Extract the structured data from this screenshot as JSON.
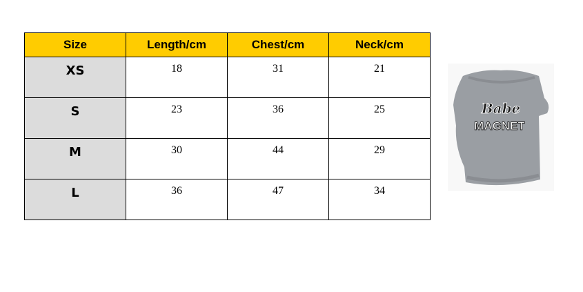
{
  "table": {
    "headers": [
      "Size",
      "Length/cm",
      "Chest/cm",
      "Neck/cm"
    ],
    "rows": [
      [
        "XS",
        "18",
        "31",
        "21"
      ],
      [
        "S",
        "23",
        "36",
        "25"
      ],
      [
        "M",
        "30",
        "44",
        "29"
      ],
      [
        "L",
        "36",
        "47",
        "34"
      ]
    ]
  },
  "colors": {
    "header": "#ffcc00",
    "size_column": "#dcdcdc"
  },
  "product_image": {
    "print_line1": "Babe",
    "print_line2": "MAGNET"
  }
}
